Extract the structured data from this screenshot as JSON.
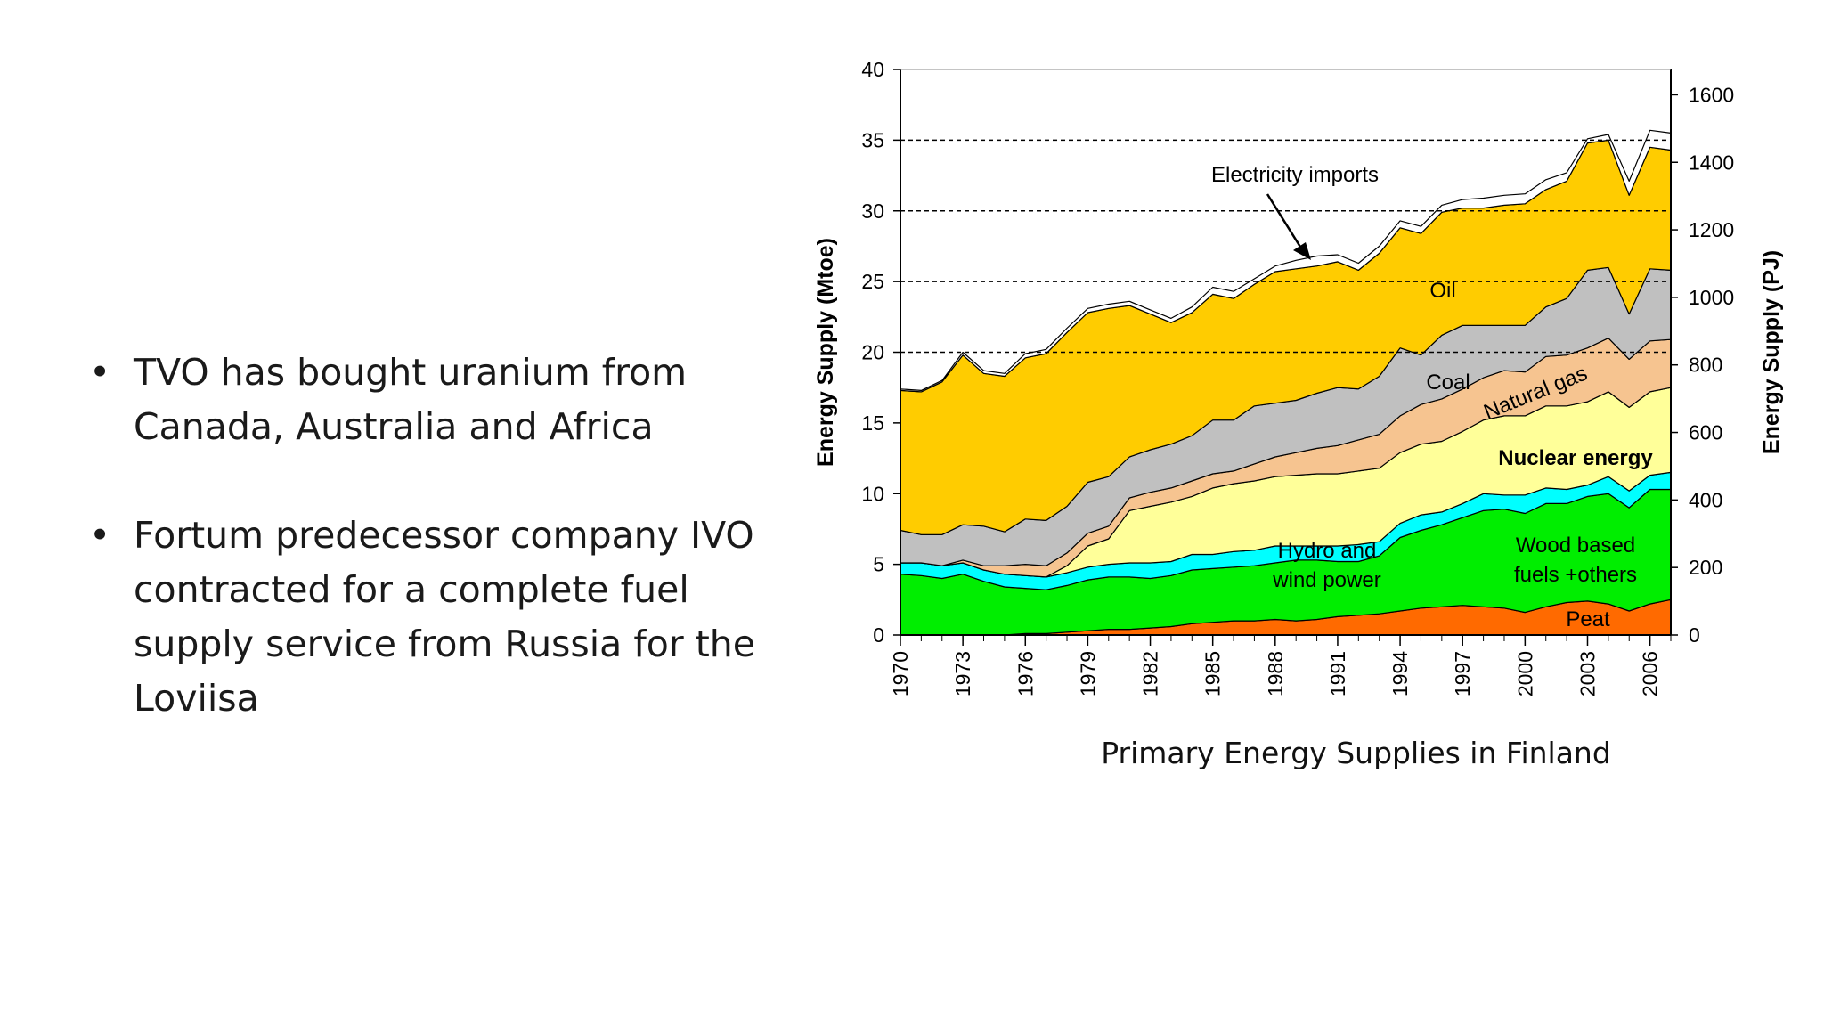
{
  "slide": {
    "bullets": [
      "TVO has bought uranium from Canada, Australia and Africa",
      "Fortum predecessor company IVO contracted for a complete fuel supply service from Russia for the Loviisa"
    ],
    "bullet_glyph": "•",
    "caption": "Primary Energy Supplies in Finland"
  },
  "chart_data": {
    "type": "area",
    "stacked": true,
    "title": "",
    "xlabel": "",
    "ylabel": "Energy Supply (Mtoe)",
    "y2label": "Energy Supply (PJ)",
    "ylim": [
      0,
      40
    ],
    "y2lim": [
      0,
      1675
    ],
    "xlim": [
      1970,
      2007
    ],
    "yticks": [
      "0",
      "5",
      "10",
      "15",
      "20",
      "25",
      "30",
      "35",
      "40"
    ],
    "y2ticks": [
      "0",
      "200",
      "400",
      "600",
      "800",
      "1000",
      "1200",
      "1400",
      "1600"
    ],
    "xticks": [
      "1970",
      "1973",
      "1976",
      "1979",
      "1982",
      "1985",
      "1988",
      "1991",
      "1994",
      "1997",
      "2000",
      "2003",
      "2006"
    ],
    "dashed_gridlines_at": [
      20,
      25,
      30,
      35
    ],
    "x": [
      1970,
      1971,
      1972,
      1973,
      1974,
      1975,
      1976,
      1977,
      1978,
      1979,
      1980,
      1981,
      1982,
      1983,
      1984,
      1985,
      1986,
      1987,
      1988,
      1989,
      1990,
      1991,
      1992,
      1993,
      1994,
      1995,
      1996,
      1997,
      1998,
      1999,
      2000,
      2001,
      2002,
      2003,
      2004,
      2005,
      2006,
      2007
    ],
    "series": [
      {
        "name": "Peat",
        "color": "#ff6a00",
        "values": [
          0,
          0,
          0,
          0,
          0,
          0,
          0.1,
          0.1,
          0.2,
          0.3,
          0.4,
          0.4,
          0.5,
          0.6,
          0.8,
          0.9,
          1.0,
          1.0,
          1.1,
          1.0,
          1.1,
          1.3,
          1.4,
          1.5,
          1.7,
          1.9,
          2.0,
          2.1,
          2.0,
          1.9,
          1.6,
          2.0,
          2.3,
          2.4,
          2.2,
          1.7,
          2.2,
          2.5
        ]
      },
      {
        "name": "Wood based fuels +others",
        "color": "#00ee00",
        "values": [
          4.3,
          4.2,
          4.0,
          4.3,
          3.8,
          3.4,
          3.2,
          3.1,
          3.3,
          3.6,
          3.7,
          3.7,
          3.5,
          3.6,
          3.8,
          3.8,
          3.8,
          3.9,
          4.0,
          4.3,
          4.2,
          3.9,
          3.8,
          4.1,
          5.2,
          5.5,
          5.8,
          6.2,
          6.8,
          7.0,
          7.0,
          7.3,
          7.0,
          7.4,
          7.8,
          7.3,
          8.1,
          7.8
        ]
      },
      {
        "name": "Hydro and wind power",
        "color": "#00ffff",
        "values": [
          0.8,
          0.9,
          0.9,
          0.8,
          0.8,
          0.9,
          0.9,
          0.9,
          0.9,
          0.9,
          0.9,
          1.0,
          1.1,
          1.0,
          1.1,
          1.0,
          1.1,
          1.1,
          1.2,
          1.0,
          1.0,
          1.1,
          1.2,
          1.0,
          1.0,
          1.1,
          0.9,
          1.0,
          1.2,
          1.0,
          1.3,
          1.1,
          1.0,
          0.8,
          1.2,
          1.2,
          1.0,
          1.2
        ]
      },
      {
        "name": "Nuclear energy",
        "color": "#ffff99",
        "values": [
          0,
          0,
          0,
          0,
          0,
          0,
          0,
          0,
          0.5,
          1.5,
          1.8,
          3.7,
          4.0,
          4.2,
          4.1,
          4.7,
          4.8,
          4.9,
          4.9,
          5.0,
          5.1,
          5.1,
          5.2,
          5.2,
          5.0,
          5.0,
          5.0,
          5.1,
          5.2,
          5.6,
          5.6,
          5.8,
          5.9,
          5.9,
          6.0,
          5.9,
          5.9,
          6.0
        ]
      },
      {
        "name": "Natural gas",
        "color": "#f6c490",
        "values": [
          0,
          0,
          0,
          0.2,
          0.3,
          0.6,
          0.8,
          0.8,
          0.9,
          0.9,
          0.9,
          0.9,
          1.0,
          1.0,
          1.1,
          1.0,
          0.9,
          1.2,
          1.4,
          1.6,
          1.8,
          2.0,
          2.2,
          2.4,
          2.6,
          2.8,
          3.0,
          3.0,
          3.0,
          3.2,
          3.1,
          3.5,
          3.6,
          3.8,
          3.8,
          3.4,
          3.6,
          3.4
        ]
      },
      {
        "name": "Coal",
        "color": "#c0c0c0",
        "values": [
          2.3,
          2.0,
          2.2,
          2.5,
          2.8,
          2.4,
          3.2,
          3.2,
          3.3,
          3.6,
          3.5,
          2.9,
          3.0,
          3.1,
          3.2,
          3.8,
          3.6,
          4.1,
          3.8,
          3.7,
          3.9,
          4.1,
          3.6,
          4.1,
          4.8,
          3.5,
          4.5,
          4.5,
          3.7,
          3.2,
          3.3,
          3.5,
          4.0,
          5.5,
          5.0,
          3.2,
          5.1,
          4.9
        ]
      },
      {
        "name": "Oil",
        "color": "#ffcc00",
        "values": [
          9.9,
          10.1,
          10.8,
          12.0,
          10.8,
          11.0,
          11.4,
          11.8,
          12.3,
          12.0,
          11.9,
          10.7,
          9.6,
          8.6,
          8.7,
          8.9,
          8.6,
          8.6,
          9.3,
          9.3,
          9.0,
          8.9,
          8.4,
          8.7,
          8.5,
          8.6,
          8.7,
          8.3,
          8.3,
          8.5,
          8.6,
          8.3,
          8.3,
          9.0,
          9.0,
          8.4,
          8.6,
          8.5
        ]
      },
      {
        "name": "Electricity imports",
        "color": "#ffffff",
        "values": [
          0.1,
          0.1,
          0.1,
          0.2,
          0.2,
          0.2,
          0.3,
          0.3,
          0.3,
          0.3,
          0.3,
          0.3,
          0.3,
          0.3,
          0.4,
          0.5,
          0.5,
          0.4,
          0.4,
          0.6,
          0.7,
          0.5,
          0.5,
          0.5,
          0.5,
          0.5,
          0.5,
          0.6,
          0.7,
          0.7,
          0.7,
          0.7,
          0.6,
          0.3,
          0.4,
          1.0,
          1.2,
          1.2
        ]
      }
    ],
    "annotations": [
      "Electricity imports",
      "Oil",
      "Coal",
      "Natural gas",
      "Nuclear energy",
      "Hydro and",
      "wind power",
      "Wood based",
      "fuels +others",
      "Peat"
    ],
    "legend": "none"
  }
}
